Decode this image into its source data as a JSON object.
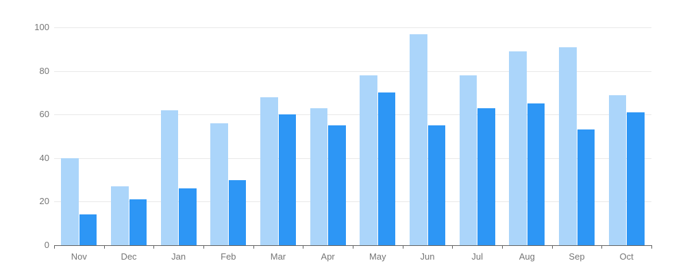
{
  "chart_data": {
    "type": "bar",
    "title": "",
    "xlabel": "",
    "ylabel": "",
    "categories": [
      "Nov",
      "Dec",
      "Jan",
      "Feb",
      "Mar",
      "Apr",
      "May",
      "Jun",
      "Jul",
      "Aug",
      "Sep",
      "Oct"
    ],
    "series": [
      {
        "name": "light-blue-series",
        "color": "#abd5fa",
        "values": [
          40,
          27,
          62,
          56,
          68,
          63,
          78,
          97,
          78,
          89,
          91,
          69
        ]
      },
      {
        "name": "dark-blue-series",
        "color": "#2d96f5",
        "values": [
          14,
          21,
          26,
          30,
          60,
          55,
          70,
          55,
          63,
          65,
          53,
          61
        ]
      }
    ],
    "ylim": [
      0,
      100
    ],
    "yticks": [
      0,
      20,
      40,
      60,
      80,
      100
    ],
    "grid": true,
    "legend_position": "none",
    "colors": {
      "background": "#ffffff",
      "gridline": "#e8e8e8",
      "axis_line": "#606060",
      "tick_text": "#757575"
    }
  }
}
